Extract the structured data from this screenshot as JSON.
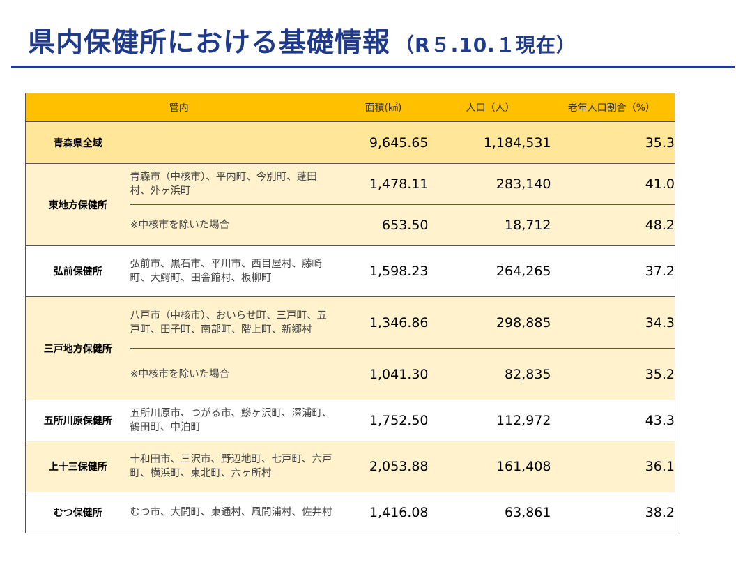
{
  "title": {
    "main": "県内保健所における基礎情報",
    "sub": "（R５.10.１現在）"
  },
  "table": {
    "headers": {
      "kannai": "管内",
      "area": "面積(㎢)",
      "population": "人口（人）",
      "elderly_ratio": "老年人口割合（%）"
    },
    "rows": {
      "all": {
        "office": "青森県全域",
        "area": "9,645.65",
        "population": "1,184,531",
        "ratio": "35.3"
      },
      "higashi": {
        "office": "東地方保健所",
        "row1": {
          "munis": "青森市（中核市）、平内町、今別町、蓬田村、外ヶ浜町",
          "area": "1,478.11",
          "population": "283,140",
          "ratio": "41.0"
        },
        "row2": {
          "munis": "※中核市を除いた場合",
          "area": "653.50",
          "population": "18,712",
          "ratio": "48.2"
        }
      },
      "hirosaki": {
        "office": "弘前保健所",
        "munis": "弘前市、黒石市、平川市、西目屋村、藤崎町、大鰐町、田舎館村、板柳町",
        "area": "1,598.23",
        "population": "264,265",
        "ratio": "37.2"
      },
      "sannohe": {
        "office": "三戸地方保健所",
        "row1": {
          "munis": "八戸市（中核市）、おいらせ町、三戸町、五戸町、田子町、南部町、階上町、新郷村",
          "area": "1,346.86",
          "population": "298,885",
          "ratio": "34.3"
        },
        "row2": {
          "munis": "※中核市を除いた場合",
          "area": "1,041.30",
          "population": "82,835",
          "ratio": "35.2"
        }
      },
      "goshogawara": {
        "office": "五所川原保健所",
        "munis": "五所川原市、つがる市、鰺ヶ沢町、深浦町、鶴田町、中泊町",
        "area": "1,752.50",
        "population": "112,972",
        "ratio": "43.3"
      },
      "kamitosan": {
        "office": "上十三保健所",
        "munis": "十和田市、三沢市、野辺地町、七戸町、六戸町、横浜町、東北町、六ヶ所村",
        "area": "2,053.88",
        "population": "161,408",
        "ratio": "36.1"
      },
      "mutsu": {
        "office": "むつ保健所",
        "munis": "むつ市、大間町、東通村、風間浦村、佐井村",
        "area": "1,416.08",
        "population": "63,861",
        "ratio": "38.2"
      }
    }
  }
}
